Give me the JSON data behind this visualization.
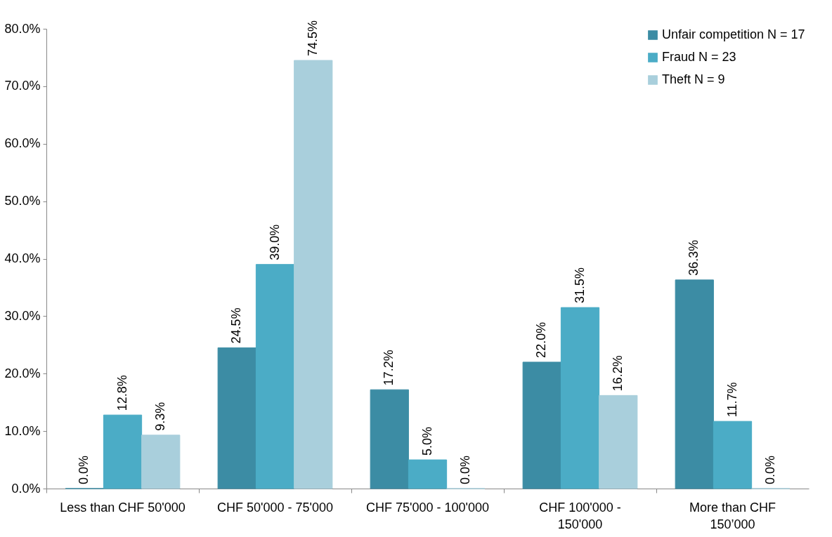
{
  "chart_data": {
    "type": "bar",
    "categories": [
      "Less than CHF 50'000",
      "CHF 50'000 - 75'000",
      "CHF 75'000 - 100'000",
      "CHF 100'000 - 150'000",
      "More than CHF 150’000"
    ],
    "series": [
      {
        "name": "Unfair competition  N = 17",
        "color": "#3c8ca4",
        "values": [
          0.0,
          24.5,
          17.2,
          22.0,
          36.3
        ],
        "value_labels": [
          "0.0%",
          "24.5%",
          "17.2%",
          "22.0%",
          "36.3%"
        ]
      },
      {
        "name": "Fraud  N = 23",
        "color": "#4bacc6",
        "values": [
          12.8,
          39.0,
          5.0,
          31.5,
          11.7
        ],
        "value_labels": [
          "12.8%",
          "39.0%",
          "5.0%",
          "31.5%",
          "11.7%"
        ]
      },
      {
        "name": "Theft  N = 9",
        "color": "#a9cfdc",
        "values": [
          9.3,
          74.5,
          0.0,
          16.2,
          0.0
        ],
        "value_labels": [
          "9.3%",
          "74.5%",
          "0.0%",
          "16.2%",
          "0.0%"
        ]
      }
    ],
    "ylim": [
      0,
      80
    ],
    "yticks": [
      {
        "value": 0,
        "label": "0.0%"
      },
      {
        "value": 10,
        "label": "10.0%"
      },
      {
        "value": 20,
        "label": "20.0%"
      },
      {
        "value": 30,
        "label": "30.0%"
      },
      {
        "value": 40,
        "label": "40.0%"
      },
      {
        "value": 50,
        "label": "50.0%"
      },
      {
        "value": 60,
        "label": "60.0%"
      },
      {
        "value": 70,
        "label": "70.0%"
      },
      {
        "value": 80,
        "label": "80.0%"
      }
    ],
    "grid": false,
    "legend": "top right"
  }
}
